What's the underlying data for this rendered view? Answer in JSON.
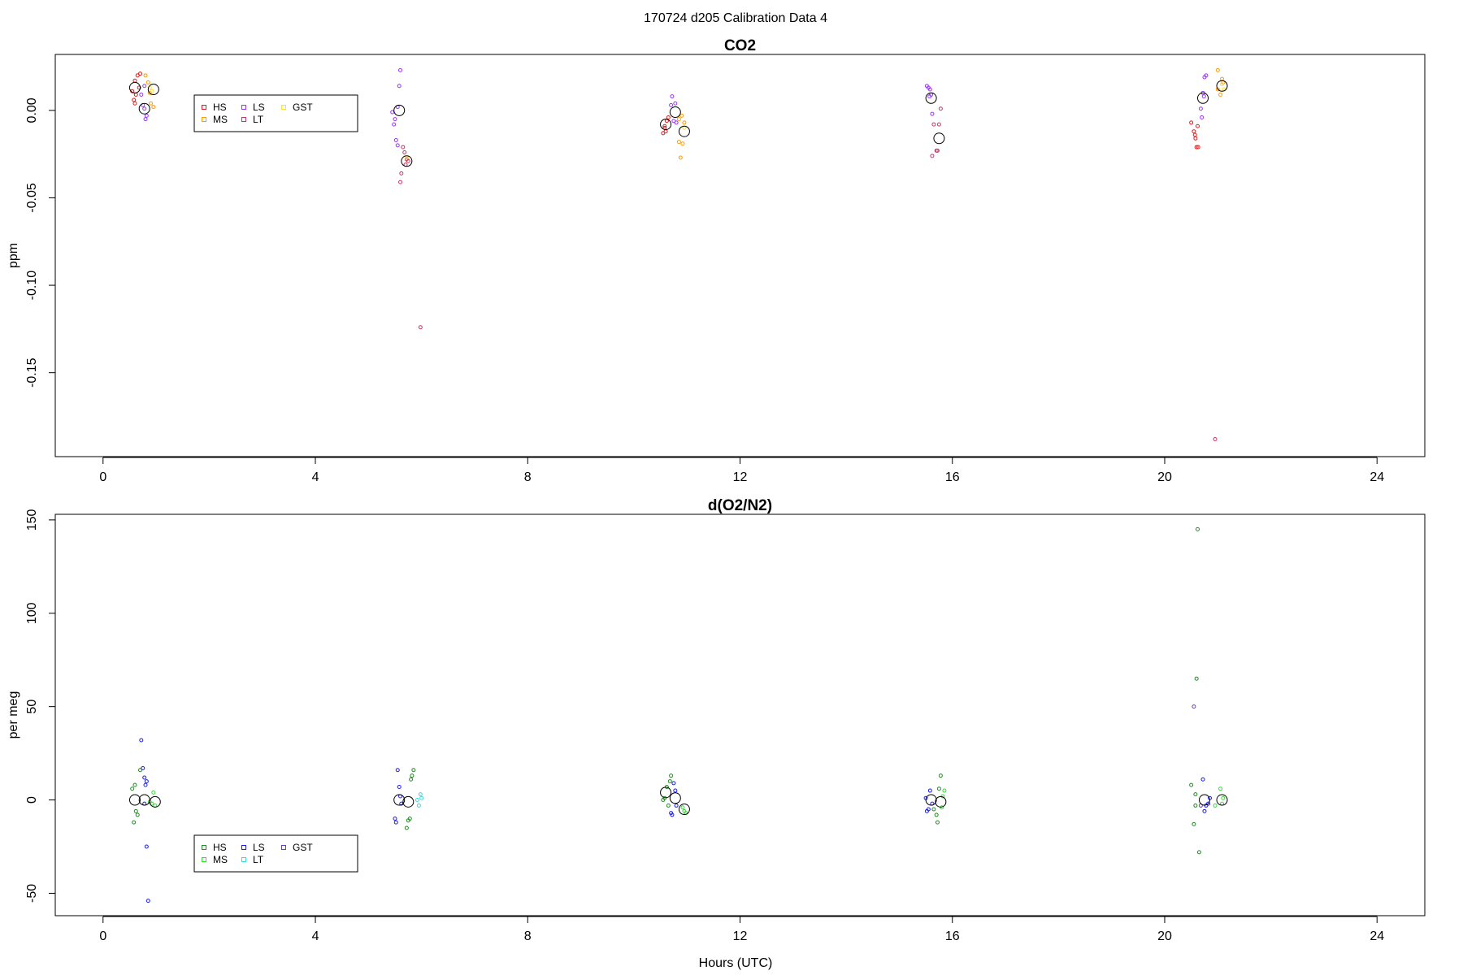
{
  "figure": {
    "title": "170724   d205   Calibration Data 4",
    "xlabel": "Hours (UTC)"
  },
  "chart_data": [
    {
      "type": "scatter",
      "title": "CO2",
      "ylabel": "ppm",
      "xlabel": "",
      "xlim": [
        -0.9,
        24.9
      ],
      "ylim": [
        -0.198,
        0.032
      ],
      "xticks": [
        0,
        4,
        8,
        12,
        16,
        20,
        24
      ],
      "yticks": [
        0.0,
        -0.05,
        -0.1,
        -0.15
      ],
      "ytick_labels": [
        "0.00",
        "-0.05",
        "-0.10",
        "-0.15"
      ],
      "grid": false,
      "legend_position": "top-left",
      "series": [
        {
          "name": "HS",
          "color": "#e41a1c",
          "points": [
            [
              0.55,
              0.011
            ],
            [
              0.58,
              0.006
            ],
            [
              0.6,
              0.017
            ],
            [
              0.62,
              0.009
            ],
            [
              0.65,
              0.02
            ],
            [
              0.7,
              0.021
            ],
            [
              0.68,
              0.013
            ],
            [
              0.6,
              0.004
            ],
            [
              10.55,
              -0.013
            ],
            [
              10.58,
              -0.009
            ],
            [
              10.62,
              -0.006
            ],
            [
              10.6,
              -0.012
            ],
            [
              10.65,
              -0.004
            ],
            [
              10.58,
              -0.01
            ],
            [
              20.5,
              -0.007
            ],
            [
              20.55,
              -0.012
            ],
            [
              20.58,
              -0.016
            ],
            [
              20.6,
              -0.021
            ],
            [
              20.62,
              -0.009
            ],
            [
              20.57,
              -0.014
            ],
            [
              20.63,
              -0.021
            ]
          ]
        },
        {
          "name": "MS",
          "color": "#ff9900",
          "points": [
            [
              0.8,
              0.02
            ],
            [
              0.85,
              0.016
            ],
            [
              0.88,
              0.01
            ],
            [
              0.9,
              0.004
            ],
            [
              0.95,
              0.002
            ],
            [
              10.85,
              -0.005
            ],
            [
              10.9,
              -0.003
            ],
            [
              10.92,
              -0.019
            ],
            [
              10.95,
              -0.007
            ],
            [
              10.88,
              -0.027
            ],
            [
              10.85,
              -0.018
            ],
            [
              21.0,
              0.012
            ],
            [
              21.05,
              0.009
            ],
            [
              21.1,
              0.016
            ],
            [
              21.0,
              0.023
            ],
            [
              21.08,
              0.018
            ]
          ]
        },
        {
          "name": "LS",
          "color": "#9933ff",
          "points": [
            [
              0.72,
              0.009
            ],
            [
              0.75,
              0.003
            ],
            [
              0.78,
              0.001
            ],
            [
              0.82,
              -0.003
            ],
            [
              0.8,
              -0.005
            ],
            [
              0.78,
              0.014
            ],
            [
              5.45,
              -0.001
            ],
            [
              5.48,
              -0.008
            ],
            [
              5.5,
              -0.005
            ],
            [
              5.55,
              0.002
            ],
            [
              5.58,
              0.014
            ],
            [
              5.6,
              0.023
            ],
            [
              5.52,
              -0.017
            ],
            [
              5.55,
              -0.02
            ],
            [
              10.7,
              0.003
            ],
            [
              10.72,
              0.008
            ],
            [
              10.75,
              -0.006
            ],
            [
              10.78,
              0.004
            ],
            [
              10.8,
              -0.007
            ],
            [
              15.52,
              0.014
            ],
            [
              15.55,
              0.013
            ],
            [
              15.58,
              0.012
            ],
            [
              15.6,
              0.009
            ],
            [
              15.62,
              -0.002
            ],
            [
              15.57,
              0.008
            ],
            [
              20.72,
              0.01
            ],
            [
              20.75,
              0.019
            ],
            [
              20.78,
              0.02
            ],
            [
              20.68,
              0.001
            ],
            [
              20.7,
              -0.004
            ],
            [
              20.74,
              0.008
            ]
          ]
        },
        {
          "name": "LT",
          "color": "#cc3366",
          "points": [
            [
              5.65,
              -0.021
            ],
            [
              5.68,
              -0.024
            ],
            [
              5.7,
              -0.031
            ],
            [
              5.72,
              -0.028
            ],
            [
              5.62,
              -0.036
            ],
            [
              5.6,
              -0.041
            ],
            [
              5.75,
              -0.029
            ],
            [
              5.98,
              -0.124
            ],
            [
              15.65,
              -0.008
            ],
            [
              15.75,
              -0.008
            ],
            [
              15.78,
              0.001
            ],
            [
              15.7,
              -0.023
            ],
            [
              15.72,
              -0.023
            ],
            [
              15.62,
              -0.026
            ],
            [
              20.95,
              -0.188
            ]
          ]
        },
        {
          "name": "GST",
          "color": "#ffdd33",
          "points": [
            [
              0.88,
              0.013
            ],
            [
              0.92,
              0.011
            ],
            [
              5.72,
              -0.027
            ],
            [
              10.95,
              -0.01
            ],
            [
              21.08,
              0.015
            ],
            [
              21.12,
              0.012
            ]
          ]
        },
        {
          "name": "",
          "color": "#000000",
          "mean": true,
          "points": [
            [
              0.6,
              0.013
            ],
            [
              0.78,
              0.001
            ],
            [
              0.95,
              0.012
            ],
            [
              5.58,
              0.0
            ],
            [
              5.72,
              -0.029
            ],
            [
              10.6,
              -0.008
            ],
            [
              10.78,
              -0.001
            ],
            [
              10.95,
              -0.012
            ],
            [
              15.6,
              0.007
            ],
            [
              15.75,
              -0.016
            ],
            [
              20.72,
              0.007
            ],
            [
              21.08,
              0.014
            ]
          ]
        }
      ]
    },
    {
      "type": "scatter",
      "title": "d(O2/N2)",
      "ylabel": "per meg",
      "xlabel": "Hours (UTC)",
      "xlim": [
        -0.9,
        24.9
      ],
      "ylim": [
        -62,
        153
      ],
      "xticks": [
        0,
        4,
        8,
        12,
        16,
        20,
        24
      ],
      "yticks": [
        150,
        100,
        50,
        0,
        -50
      ],
      "ytick_labels": [
        "150",
        "100",
        "50",
        "0",
        "-50"
      ],
      "grid": false,
      "legend_position": "bottom-left",
      "series": [
        {
          "name": "HS",
          "color": "#228b22",
          "points": [
            [
              0.55,
              6
            ],
            [
              0.58,
              -12
            ],
            [
              0.6,
              8
            ],
            [
              0.62,
              -6
            ],
            [
              0.65,
              -8
            ],
            [
              0.7,
              16
            ],
            [
              5.78,
              -10
            ],
            [
              5.8,
              11
            ],
            [
              5.82,
              13
            ],
            [
              5.75,
              -11
            ],
            [
              5.72,
              -15
            ],
            [
              5.85,
              16
            ],
            [
              10.55,
              0
            ],
            [
              10.58,
              1
            ],
            [
              10.62,
              7
            ],
            [
              10.65,
              -3
            ],
            [
              10.68,
              10
            ],
            [
              10.7,
              13
            ],
            [
              15.65,
              -5
            ],
            [
              15.7,
              -8
            ],
            [
              15.72,
              -12
            ],
            [
              15.75,
              6
            ],
            [
              15.78,
              13
            ],
            [
              20.5,
              8
            ],
            [
              20.55,
              -13
            ],
            [
              20.58,
              -3
            ],
            [
              20.6,
              65
            ],
            [
              20.62,
              145
            ],
            [
              20.65,
              -28
            ],
            [
              20.58,
              3
            ]
          ]
        },
        {
          "name": "MS",
          "color": "#33dd33",
          "points": [
            [
              0.88,
              -1
            ],
            [
              0.92,
              -2
            ],
            [
              0.95,
              4
            ],
            [
              0.98,
              -3
            ],
            [
              10.92,
              -4
            ],
            [
              10.95,
              -6
            ],
            [
              10.98,
              -7
            ],
            [
              15.8,
              -4
            ],
            [
              15.82,
              2
            ],
            [
              15.85,
              5
            ],
            [
              20.95,
              -3
            ],
            [
              21.05,
              6
            ],
            [
              21.08,
              -2
            ],
            [
              21.1,
              1
            ]
          ]
        },
        {
          "name": "LS",
          "color": "#1a1aff",
          "points": [
            [
              0.72,
              32
            ],
            [
              0.75,
              17
            ],
            [
              0.78,
              12
            ],
            [
              0.8,
              8
            ],
            [
              0.82,
              10
            ],
            [
              0.82,
              -25
            ],
            [
              0.85,
              -54
            ],
            [
              0.78,
              -2
            ],
            [
              5.5,
              -10
            ],
            [
              5.52,
              -12
            ],
            [
              5.55,
              16
            ],
            [
              5.58,
              7
            ],
            [
              5.6,
              2
            ],
            [
              5.62,
              -2
            ],
            [
              10.7,
              -7
            ],
            [
              10.72,
              -8
            ],
            [
              10.75,
              9
            ],
            [
              10.78,
              5
            ],
            [
              10.8,
              -3
            ],
            [
              15.5,
              1
            ],
            [
              15.52,
              -6
            ],
            [
              15.55,
              -5
            ],
            [
              15.58,
              5
            ],
            [
              15.62,
              -2
            ],
            [
              20.72,
              11
            ],
            [
              20.75,
              -6
            ],
            [
              20.78,
              -3
            ],
            [
              20.82,
              -2
            ],
            [
              20.85,
              1
            ]
          ]
        },
        {
          "name": "LT",
          "color": "#33dddd",
          "points": [
            [
              5.92,
              0
            ],
            [
              5.95,
              -3
            ],
            [
              5.98,
              3
            ],
            [
              6.0,
              1
            ]
          ]
        },
        {
          "name": "GST",
          "color": "#6a3dc8",
          "points": [
            [
              20.55,
              50
            ],
            [
              20.68,
              -3
            ]
          ]
        },
        {
          "name": "",
          "color": "#000000",
          "mean": true,
          "points": [
            [
              0.6,
              0
            ],
            [
              0.78,
              0
            ],
            [
              0.98,
              -1
            ],
            [
              5.58,
              0
            ],
            [
              5.75,
              -1
            ],
            [
              10.6,
              4
            ],
            [
              10.78,
              1
            ],
            [
              10.95,
              -5
            ],
            [
              15.6,
              0
            ],
            [
              15.78,
              -1
            ],
            [
              20.75,
              0
            ],
            [
              21.08,
              0
            ]
          ]
        }
      ]
    }
  ]
}
